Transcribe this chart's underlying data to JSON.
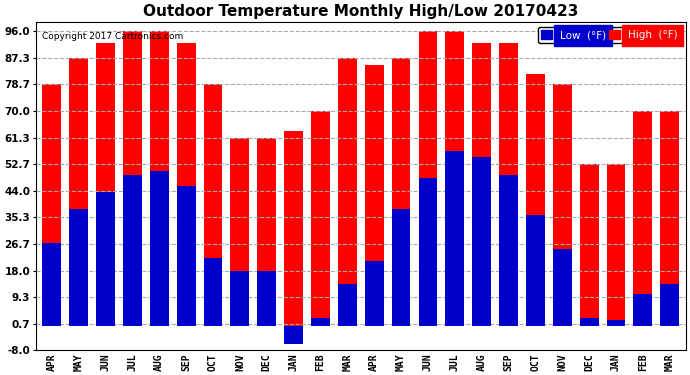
{
  "title": "Outdoor Temperature Monthly High/Low 20170423",
  "copyright": "Copyright 2017 Cartronics.com",
  "months": [
    "APR",
    "MAY",
    "JUN",
    "JUL",
    "AUG",
    "SEP",
    "OCT",
    "NOV",
    "DEC",
    "JAN",
    "FEB",
    "MAR",
    "APR",
    "MAY",
    "JUN",
    "JUL",
    "AUG",
    "SEP",
    "OCT",
    "NOV",
    "DEC",
    "JAN",
    "FEB",
    "MAR"
  ],
  "high": [
    78.7,
    87.3,
    92.0,
    96.0,
    96.0,
    92.0,
    78.7,
    61.3,
    61.3,
    63.5,
    70.0,
    87.3,
    85.0,
    87.3,
    96.0,
    96.0,
    92.0,
    92.0,
    82.0,
    78.7,
    52.7,
    52.7,
    70.0,
    70.0
  ],
  "low": [
    27.0,
    38.0,
    43.5,
    49.0,
    50.5,
    45.5,
    22.0,
    18.0,
    18.0,
    -6.0,
    2.5,
    13.5,
    21.0,
    38.0,
    48.0,
    57.0,
    55.0,
    49.0,
    36.0,
    25.0,
    2.5,
    2.0,
    10.5,
    13.5
  ],
  "high_color": "#ff0000",
  "low_color": "#0000cc",
  "bg_color": "#ffffff",
  "plot_bg_color": "#ffffff",
  "grid_color": "#aaaaaa",
  "yticks": [
    -8.0,
    0.7,
    9.3,
    18.0,
    26.7,
    35.3,
    44.0,
    52.7,
    61.3,
    70.0,
    78.7,
    87.3,
    96.0
  ],
  "ylim": [
    -8.0,
    99.0
  ],
  "title_fontsize": 11,
  "bar_width": 0.7
}
